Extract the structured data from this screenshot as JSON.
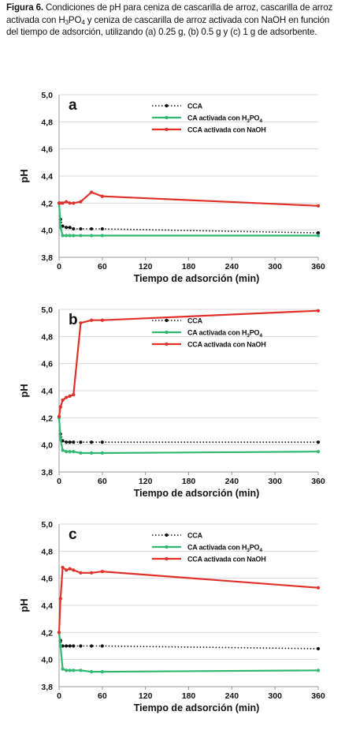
{
  "caption": {
    "label": "Figura 6.",
    "text_before_sub1": " Condiciones de pH para ceniza de cascarilla de arroz, cascarilla de arroz activada con H",
    "sub1": "3",
    "mid1": "PO",
    "sub2": "4",
    "text_after": " y ceniza de cascarilla de arroz activada con NaOH en función del tiempo de adsorción, utilizando (a) 0.25 g, (b) 0.5 g y (c) 1 g de adsorbente."
  },
  "colors": {
    "cca": "#111111",
    "h3po4": "#2eb872",
    "naoh": "#e0302a",
    "grid": "#d8d8d8",
    "axis": "#999999"
  },
  "chart_data": [
    {
      "type": "line",
      "panel_letter": "a",
      "xlabel": "Tiempo de adsorción (min)",
      "ylabel": "pH",
      "xlim": [
        0,
        360
      ],
      "ylim": [
        3.8,
        5.0
      ],
      "xticks": [
        0,
        60,
        120,
        180,
        240,
        300,
        360
      ],
      "yticks": [
        "3,8",
        "4,0",
        "4,2",
        "4,4",
        "4,6",
        "4,8",
        "5,0"
      ],
      "legend_position": "top-right",
      "grid": true,
      "series": [
        {
          "name": "CCA",
          "name_prefix": "CCA",
          "sub1": "",
          "mid": "",
          "sub2": "",
          "color_key": "cca",
          "style": "dotted",
          "x": [
            0,
            2,
            5,
            10,
            15,
            20,
            30,
            45,
            60,
            360
          ],
          "y": [
            4.2,
            4.08,
            4.03,
            4.02,
            4.02,
            4.01,
            4.01,
            4.01,
            4.01,
            3.98
          ]
        },
        {
          "name": "CA activada con H3PO4",
          "name_prefix": "CA activada con H",
          "sub1": "3",
          "mid": "PO",
          "sub2": "4",
          "color_key": "h3po4",
          "style": "solid",
          "x": [
            0,
            2,
            5,
            10,
            15,
            20,
            30,
            45,
            60,
            360
          ],
          "y": [
            4.2,
            4.02,
            3.96,
            3.96,
            3.96,
            3.96,
            3.96,
            3.96,
            3.96,
            3.96
          ]
        },
        {
          "name": "CCA activada con NaOH",
          "name_prefix": "CCA activada con NaOH",
          "sub1": "",
          "mid": "",
          "sub2": "",
          "color_key": "naoh",
          "style": "solid",
          "x": [
            0,
            2,
            5,
            10,
            15,
            20,
            30,
            45,
            60,
            360
          ],
          "y": [
            4.2,
            4.2,
            4.2,
            4.21,
            4.2,
            4.2,
            4.21,
            4.28,
            4.25,
            4.18
          ]
        }
      ]
    },
    {
      "type": "line",
      "panel_letter": "b",
      "xlabel": "Tiempo de adsorción (min)",
      "ylabel": "pH",
      "xlim": [
        0,
        360
      ],
      "ylim": [
        3.8,
        5.0
      ],
      "xticks": [
        0,
        60,
        120,
        180,
        240,
        300,
        360
      ],
      "yticks": [
        "3,8",
        "4,0",
        "4,2",
        "4,4",
        "4,6",
        "4,8",
        "5,0"
      ],
      "legend_position": "top-right",
      "grid": true,
      "series": [
        {
          "name": "CCA",
          "name_prefix": "CCA",
          "sub1": "",
          "mid": "",
          "sub2": "",
          "color_key": "cca",
          "style": "dotted",
          "x": [
            0,
            2,
            5,
            10,
            15,
            20,
            30,
            45,
            60,
            360
          ],
          "y": [
            4.2,
            4.08,
            4.03,
            4.02,
            4.02,
            4.02,
            4.02,
            4.02,
            4.02,
            4.02
          ]
        },
        {
          "name": "CA activada con H3PO4",
          "name_prefix": "CA activada con H",
          "sub1": "3",
          "mid": "PO",
          "sub2": "4",
          "color_key": "h3po4",
          "style": "solid",
          "x": [
            0,
            2,
            5,
            10,
            15,
            20,
            30,
            45,
            60,
            360
          ],
          "y": [
            4.2,
            4.04,
            3.96,
            3.95,
            3.95,
            3.95,
            3.94,
            3.94,
            3.94,
            3.95
          ]
        },
        {
          "name": "CCA activada con NaOH",
          "name_prefix": "CCA activada con NaOH",
          "sub1": "",
          "mid": "",
          "sub2": "",
          "color_key": "naoh",
          "style": "solid",
          "x": [
            0,
            2,
            5,
            10,
            15,
            20,
            30,
            45,
            60,
            360
          ],
          "y": [
            4.21,
            4.28,
            4.33,
            4.35,
            4.36,
            4.37,
            4.9,
            4.92,
            4.92,
            4.99
          ]
        }
      ]
    },
    {
      "type": "line",
      "panel_letter": "c",
      "xlabel": "Tiempo de adsorción (min)",
      "ylabel": "pH",
      "xlim": [
        0,
        360
      ],
      "ylim": [
        3.8,
        5.0
      ],
      "xticks": [
        0,
        60,
        120,
        180,
        240,
        300,
        360
      ],
      "yticks": [
        "3,8",
        "4,0",
        "4,2",
        "4,4",
        "4,6",
        "4,8",
        "5,0"
      ],
      "legend_position": "top-right",
      "grid": true,
      "series": [
        {
          "name": "CCA",
          "name_prefix": "CCA",
          "sub1": "",
          "mid": "",
          "sub2": "",
          "color_key": "cca",
          "style": "dotted",
          "x": [
            0,
            2,
            5,
            10,
            15,
            20,
            30,
            45,
            60,
            360
          ],
          "y": [
            4.2,
            4.14,
            4.1,
            4.1,
            4.1,
            4.1,
            4.1,
            4.1,
            4.1,
            4.08
          ]
        },
        {
          "name": "CA activada con H3PO4",
          "name_prefix": "CA activada con H",
          "sub1": "3",
          "mid": "PO",
          "sub2": "4",
          "color_key": "h3po4",
          "style": "solid",
          "x": [
            0,
            2,
            5,
            10,
            15,
            20,
            30,
            45,
            60,
            360
          ],
          "y": [
            4.2,
            4.1,
            3.93,
            3.92,
            3.92,
            3.92,
            3.92,
            3.91,
            3.91,
            3.92
          ]
        },
        {
          "name": "CCA activada con NaOH",
          "name_prefix": "CCA activada con NaOH",
          "sub1": "",
          "mid": "",
          "sub2": "",
          "color_key": "naoh",
          "style": "solid",
          "x": [
            0,
            2,
            5,
            10,
            15,
            20,
            30,
            45,
            60,
            360
          ],
          "y": [
            4.2,
            4.45,
            4.68,
            4.66,
            4.67,
            4.66,
            4.64,
            4.64,
            4.65,
            4.53
          ]
        }
      ]
    }
  ]
}
